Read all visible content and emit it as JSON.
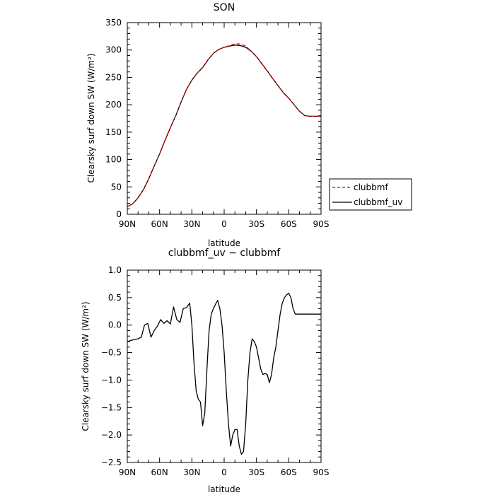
{
  "colors": {
    "clubbmf": "#cc0000",
    "clubbmf_uv": "#000000"
  },
  "chart_data": [
    {
      "type": "line",
      "title": "SON",
      "xlabel": "latitude",
      "ylabel": "Clearsky surf down SW (W/m²)",
      "xlim": [
        90,
        -90
      ],
      "ylim": [
        0,
        350
      ],
      "xticks": [
        90,
        60,
        30,
        0,
        -30,
        -60,
        -90
      ],
      "xticklabels": [
        "90N",
        "60N",
        "30N",
        "0",
        "30S",
        "60S",
        "90S"
      ],
      "yticks": [
        0,
        50,
        100,
        150,
        200,
        250,
        300,
        350
      ],
      "yticklabels": [
        "0",
        "50",
        "100",
        "150",
        "200",
        "250",
        "300",
        "350"
      ],
      "legend_position": "right",
      "x": [
        90,
        85,
        80,
        75,
        70,
        65,
        60,
        55,
        50,
        45,
        40,
        35,
        30,
        25,
        20,
        15,
        10,
        5,
        0,
        -5,
        -10,
        -15,
        -20,
        -25,
        -30,
        -35,
        -40,
        -45,
        -50,
        -55,
        -60,
        -65,
        -70,
        -75,
        -80,
        -85,
        -88,
        -90
      ],
      "series": [
        {
          "name": "clubbmf",
          "style": "dashed",
          "color": "#cc0000",
          "values": [
            14,
            19,
            30,
            45,
            65,
            88,
            110,
            135,
            158,
            180,
            205,
            228,
            245,
            258,
            268,
            282,
            294,
            301,
            305,
            308,
            311,
            311,
            307,
            298,
            288,
            275,
            262,
            248,
            235,
            222,
            212,
            200,
            188,
            180,
            179,
            179,
            179,
            179
          ]
        },
        {
          "name": "clubbmf_uv",
          "style": "solid",
          "color": "#000000",
          "values": [
            14,
            19,
            30,
            45,
            65,
            88,
            110,
            135,
            158,
            180,
            205,
            228,
            245,
            258,
            268,
            282,
            294,
            301,
            305,
            307,
            309,
            308,
            305,
            298,
            288,
            275,
            262,
            248,
            235,
            222,
            212,
            200,
            188,
            180,
            179,
            179,
            179,
            179
          ]
        }
      ]
    },
    {
      "type": "line",
      "title": "clubbmf_uv − clubbmf",
      "xlabel": "latitude",
      "ylabel": "Clearsky surf down SW (W/m²)",
      "xlim": [
        90,
        -90
      ],
      "ylim": [
        -2.5,
        1.0
      ],
      "xticks": [
        90,
        60,
        30,
        0,
        -30,
        -60,
        -90
      ],
      "xticklabels": [
        "90N",
        "60N",
        "30N",
        "0",
        "30S",
        "60S",
        "90S"
      ],
      "yticks": [
        -2.5,
        -2.0,
        -1.5,
        -1.0,
        -0.5,
        0.0,
        0.5,
        1.0
      ],
      "yticklabels": [
        "−2.5",
        "−2.0",
        "−1.5",
        "−1.0",
        "−0.5",
        "0.0",
        "0.5",
        "1.0"
      ],
      "series": [
        {
          "name": "clubbmf_uv − clubbmf",
          "style": "solid",
          "color": "#000000",
          "x": [
            90,
            85,
            80,
            77,
            74,
            71,
            68,
            65,
            62,
            59,
            56,
            53,
            50,
            47,
            44,
            41,
            38,
            35,
            32,
            30,
            28,
            26,
            24,
            22,
            20,
            18,
            16,
            14,
            12,
            10,
            8,
            6,
            4,
            2,
            0,
            -2,
            -4,
            -6,
            -8,
            -10,
            -12,
            -14,
            -16,
            -18,
            -20,
            -22,
            -24,
            -26,
            -28,
            -30,
            -32,
            -34,
            -36,
            -38,
            -40,
            -42,
            -44,
            -46,
            -48,
            -50,
            -52,
            -54,
            -56,
            -58,
            -60,
            -62,
            -64,
            -66,
            -68,
            -70,
            -72,
            -74,
            -76,
            -78,
            -80,
            -82,
            -84,
            -86,
            -88,
            -90
          ],
          "values": [
            -0.3,
            -0.27,
            -0.25,
            -0.22,
            0.0,
            0.03,
            -0.22,
            -0.1,
            -0.02,
            0.1,
            0.03,
            0.08,
            0.02,
            0.33,
            0.1,
            0.05,
            0.3,
            0.32,
            0.4,
            0.0,
            -0.7,
            -1.2,
            -1.35,
            -1.4,
            -1.83,
            -1.6,
            -0.8,
            -0.1,
            0.2,
            0.3,
            0.38,
            0.45,
            0.3,
            0.0,
            -0.5,
            -1.2,
            -1.8,
            -2.2,
            -2.0,
            -1.9,
            -1.9,
            -2.2,
            -2.35,
            -2.3,
            -1.8,
            -1.0,
            -0.5,
            -0.25,
            -0.3,
            -0.4,
            -0.6,
            -0.8,
            -0.9,
            -0.88,
            -0.9,
            -1.05,
            -0.9,
            -0.6,
            -0.4,
            -0.1,
            0.2,
            0.4,
            0.5,
            0.55,
            0.58,
            0.5,
            0.3,
            0.2,
            0.2,
            0.2,
            0.2,
            0.2,
            0.2,
            0.2,
            0.2,
            0.2,
            0.2,
            0.2,
            0.2,
            0.2
          ]
        }
      ]
    }
  ]
}
